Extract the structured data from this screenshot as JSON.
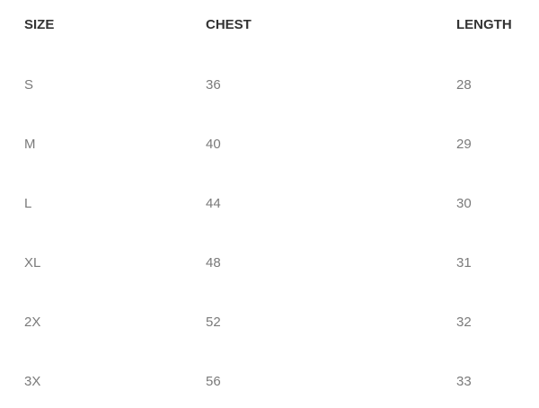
{
  "table": {
    "headers": [
      "SIZE",
      "CHEST",
      "LENGTH"
    ],
    "rows": [
      [
        "S",
        "36",
        "28"
      ],
      [
        "M",
        "40",
        "29"
      ],
      [
        "L",
        "44",
        "30"
      ],
      [
        "XL",
        "48",
        "31"
      ],
      [
        "2X",
        "52",
        "32"
      ],
      [
        "3X",
        "56",
        "33"
      ]
    ]
  },
  "colors": {
    "header_text": "#333333",
    "body_text": "#7a7a7a"
  }
}
